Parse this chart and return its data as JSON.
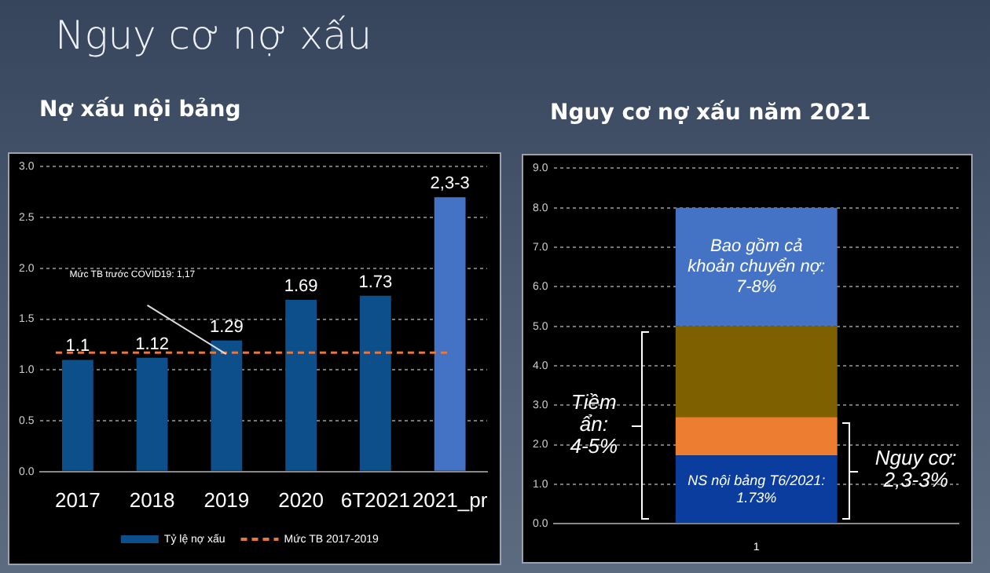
{
  "chart_data": [
    {
      "type": "bar",
      "title": "Nợ xấu nội bảng",
      "annotations": [
        "Nguy cơ nợ xấu",
        "Mức TB trước COVID19: 1,17"
      ],
      "categories": [
        "2017",
        "2018",
        "2019",
        "2020",
        "6T2021",
        "2021_pr"
      ],
      "series": [
        {
          "name": "Tỷ lệ nợ xấu",
          "colors": [
            "#0d4f8b",
            "#0d4f8b",
            "#0d4f8b",
            "#0d4f8b",
            "#0d4f8b",
            "#4472c4"
          ],
          "values": [
            1.1,
            1.12,
            1.29,
            1.69,
            1.73,
            2.7
          ],
          "value_labels": [
            "1.1",
            "1.12",
            "1.29",
            "1.69",
            "1.73",
            "2,3-3"
          ]
        }
      ],
      "ylim": [
        0,
        3
      ],
      "yticks": [
        {
          "value": 0,
          "label": "0.0"
        },
        {
          "value": 0.5,
          "label": "0.5"
        },
        {
          "value": 1,
          "label": "1.0"
        },
        {
          "value": 1.5,
          "label": "1.5"
        },
        {
          "value": 2,
          "label": "2.0"
        },
        {
          "value": 2.5,
          "label": "2.5"
        },
        {
          "value": 3,
          "label": "3.0"
        }
      ],
      "grid": "y",
      "legend": "bottom",
      "ref_lines": [
        {
          "axis": "y",
          "value": 1.17,
          "label": "Mức TB 2017-2019",
          "color": "#e8773a",
          "line_style": "dashed"
        }
      ]
    },
    {
      "type": "bar",
      "stacked": true,
      "title": "Nguy cơ nợ xấu năm 2021",
      "categories": [
        "1"
      ],
      "series": [
        {
          "color": "#0a3d9e",
          "values": [
            1.73
          ]
        },
        {
          "color": "#ed7d31",
          "values": [
            0.97
          ]
        },
        {
          "color": "#7f6000",
          "values": [
            2.3
          ]
        },
        {
          "color": "#4472c4",
          "values": [
            3.0
          ]
        }
      ],
      "ylim": [
        0,
        9
      ],
      "yticks": [
        {
          "value": 0,
          "label": "0.0"
        },
        {
          "value": 1,
          "label": "1.0"
        },
        {
          "value": 2,
          "label": "2.0"
        },
        {
          "value": 3,
          "label": "3.0"
        },
        {
          "value": 4,
          "label": "4.0"
        },
        {
          "value": 5,
          "label": "5.0"
        },
        {
          "value": 6,
          "label": "6.0"
        },
        {
          "value": 7,
          "label": "7.0"
        },
        {
          "value": 8,
          "label": "8.0"
        },
        {
          "value": 9,
          "label": "9.0"
        }
      ],
      "grid": "y",
      "annotations": [
        "Bao gồm cả khoản chuyển nợ: 7-8%",
        "NS nội bảng T6/2021: 1.73%",
        "Tiềm ẩn: 4-5%",
        "Nguy cơ: 2,3-3%"
      ]
    }
  ]
}
